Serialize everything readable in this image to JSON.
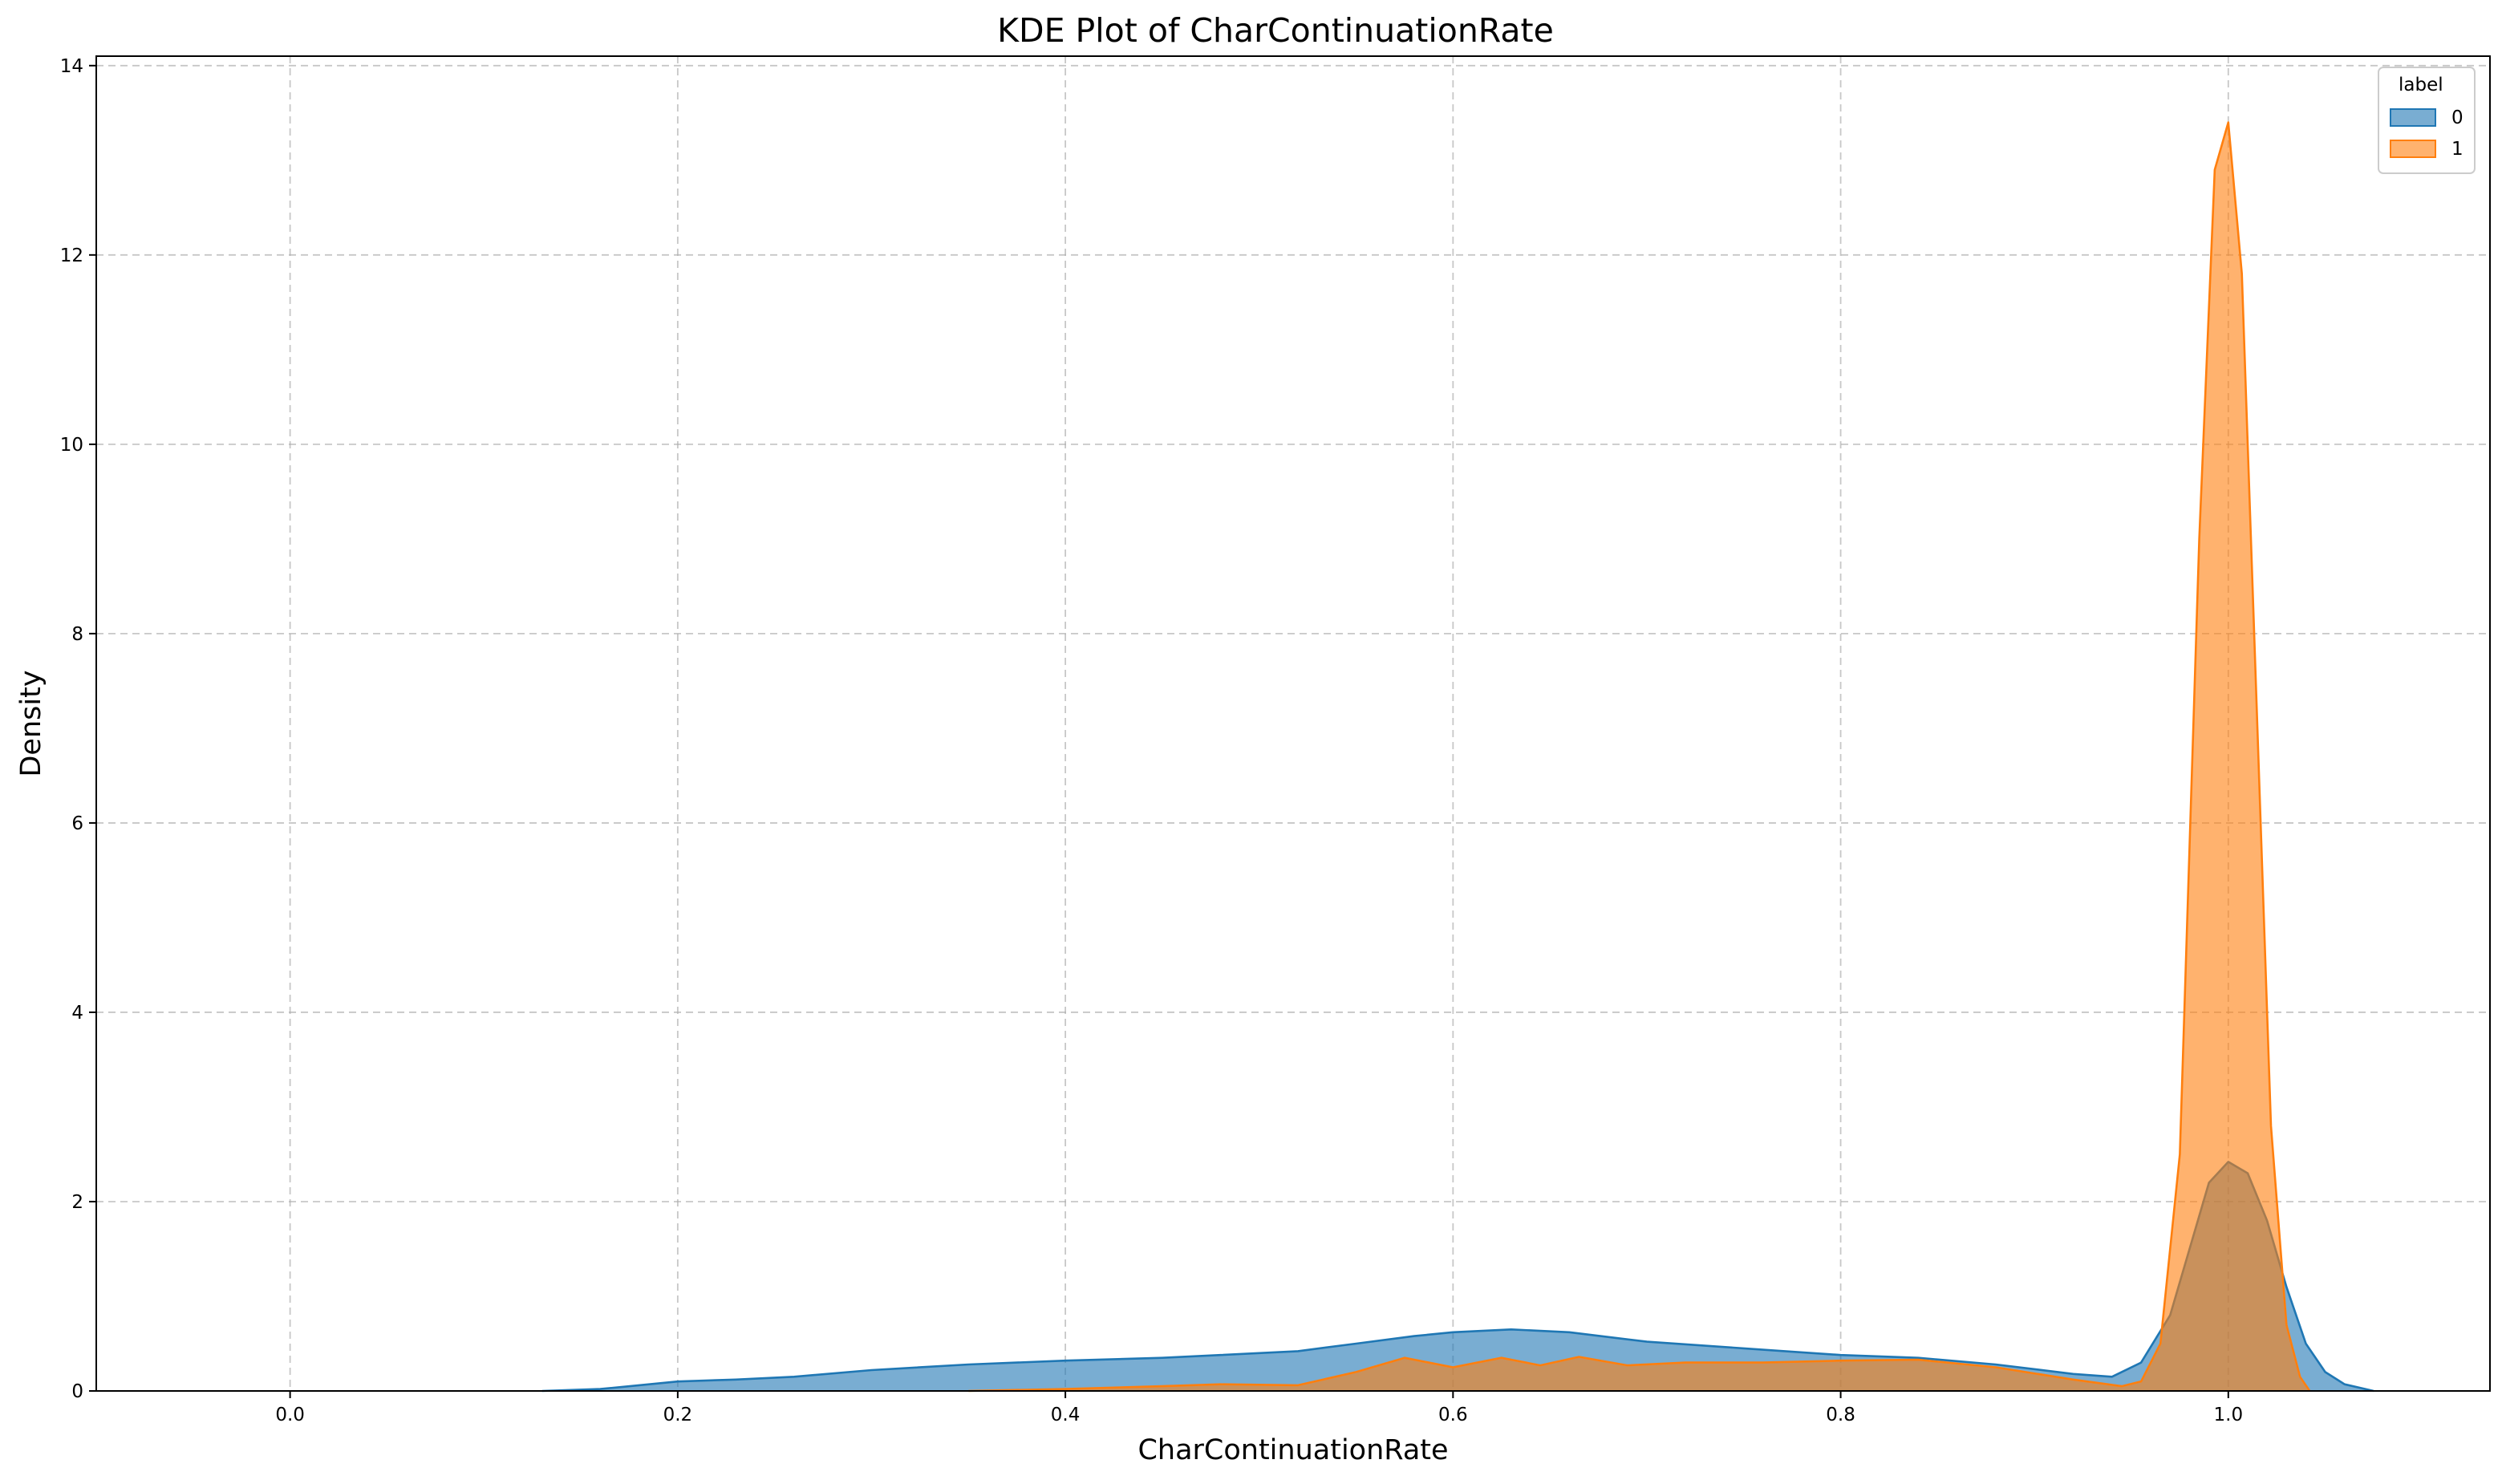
{
  "chart_data": {
    "type": "area",
    "title": "KDE Plot of CharContinuationRate",
    "xlabel": "CharContinuationRate",
    "ylabel": "Density",
    "xlim": [
      -0.1,
      1.135
    ],
    "ylim": [
      0,
      14.1
    ],
    "xticks": [
      0.0,
      0.2,
      0.4,
      0.6,
      0.8,
      1.0
    ],
    "yticks": [
      0,
      2,
      4,
      6,
      8,
      10,
      12,
      14
    ],
    "xtick_labels": [
      "0.0",
      "0.2",
      "0.4",
      "0.6",
      "0.8",
      "1.0"
    ],
    "ytick_labels": [
      "0",
      "2",
      "4",
      "6",
      "8",
      "10",
      "12",
      "14"
    ],
    "grid": true,
    "legend": {
      "title": "label",
      "position": "top-right"
    },
    "series": [
      {
        "name": "0",
        "color": "#1f77b4",
        "points": [
          [
            0.13,
            0.0
          ],
          [
            0.16,
            0.02
          ],
          [
            0.18,
            0.06
          ],
          [
            0.2,
            0.1
          ],
          [
            0.23,
            0.12
          ],
          [
            0.26,
            0.15
          ],
          [
            0.3,
            0.22
          ],
          [
            0.35,
            0.28
          ],
          [
            0.4,
            0.32
          ],
          [
            0.45,
            0.35
          ],
          [
            0.48,
            0.38
          ],
          [
            0.52,
            0.42
          ],
          [
            0.55,
            0.5
          ],
          [
            0.58,
            0.58
          ],
          [
            0.6,
            0.62
          ],
          [
            0.63,
            0.65
          ],
          [
            0.66,
            0.62
          ],
          [
            0.7,
            0.52
          ],
          [
            0.75,
            0.45
          ],
          [
            0.8,
            0.38
          ],
          [
            0.84,
            0.35
          ],
          [
            0.88,
            0.28
          ],
          [
            0.92,
            0.18
          ],
          [
            0.94,
            0.15
          ],
          [
            0.955,
            0.3
          ],
          [
            0.97,
            0.8
          ],
          [
            0.98,
            1.5
          ],
          [
            0.99,
            2.2
          ],
          [
            1.0,
            2.42
          ],
          [
            1.01,
            2.3
          ],
          [
            1.02,
            1.8
          ],
          [
            1.03,
            1.1
          ],
          [
            1.04,
            0.5
          ],
          [
            1.05,
            0.2
          ],
          [
            1.06,
            0.07
          ],
          [
            1.075,
            0.0
          ]
        ]
      },
      {
        "name": "1",
        "color": "#ff7f0e",
        "points": [
          [
            0.35,
            0.0
          ],
          [
            0.4,
            0.02
          ],
          [
            0.45,
            0.05
          ],
          [
            0.48,
            0.07
          ],
          [
            0.52,
            0.06
          ],
          [
            0.55,
            0.2
          ],
          [
            0.575,
            0.35
          ],
          [
            0.6,
            0.25
          ],
          [
            0.625,
            0.35
          ],
          [
            0.645,
            0.27
          ],
          [
            0.665,
            0.36
          ],
          [
            0.69,
            0.27
          ],
          [
            0.72,
            0.3
          ],
          [
            0.76,
            0.3
          ],
          [
            0.8,
            0.32
          ],
          [
            0.84,
            0.33
          ],
          [
            0.88,
            0.25
          ],
          [
            0.92,
            0.12
          ],
          [
            0.945,
            0.05
          ],
          [
            0.955,
            0.1
          ],
          [
            0.965,
            0.5
          ],
          [
            0.975,
            2.5
          ],
          [
            0.985,
            9.0
          ],
          [
            0.993,
            12.9
          ],
          [
            1.0,
            13.4
          ],
          [
            1.007,
            11.8
          ],
          [
            1.015,
            7.0
          ],
          [
            1.022,
            2.8
          ],
          [
            1.03,
            0.7
          ],
          [
            1.037,
            0.15
          ],
          [
            1.042,
            0.0
          ]
        ]
      }
    ]
  }
}
